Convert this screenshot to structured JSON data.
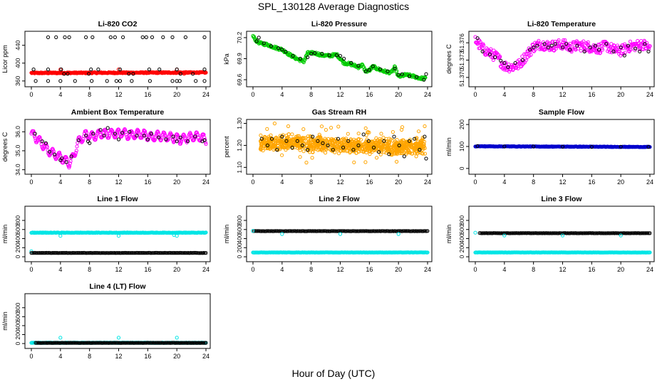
{
  "page": {
    "title": "SPL_130128  Average Diagnostics",
    "xlabel": "Hour of Day (UTC)"
  },
  "colors": {
    "black": "#000000",
    "red": "#ff0000",
    "green": "#00cc00",
    "magenta": "#ff00ff",
    "orange": "#ffa500",
    "blue": "#0000cc",
    "cyan": "#00e5e5"
  },
  "chart_data": [
    {
      "type": "scatter",
      "title": "Li-820 CO2",
      "ylabel": "Licor ppm",
      "xlim": [
        0,
        24
      ],
      "ylim": [
        355,
        465
      ],
      "xticks": [
        "0",
        "4",
        "8",
        "12",
        "16",
        "20",
        "24"
      ],
      "yticks": [
        "360",
        "400",
        "440"
      ],
      "series": [
        {
          "color": "red",
          "shape": "dense",
          "x": [
            0,
            24
          ],
          "y": [
            378,
            379
          ],
          "yjit": 1.3,
          "n": 330
        },
        {
          "color": "red",
          "shape": "points",
          "x": [
            4,
            12,
            20,
            13,
            21
          ],
          "y": [
            386,
            386,
            386,
            378,
            376
          ]
        },
        {
          "color": "black",
          "shape": "points",
          "x": [
            0.3,
            2.3,
            2.3,
            3.4,
            4.1,
            4.6,
            5,
            5.2,
            7.5,
            7.9,
            8.4,
            8.2,
            9.2,
            10.9,
            11.5,
            12.2,
            12.6,
            13.4,
            14,
            15.3,
            15.8,
            16.2,
            16.6,
            17.6,
            18.1,
            19.4,
            20,
            20.5,
            21.2,
            22.2,
            23.8,
            23.8,
            0.6,
            2.3,
            4,
            4.5,
            6,
            8.3,
            10.4,
            11.7,
            12.2,
            13.8,
            16.3,
            19.4,
            20,
            20.4,
            22.6,
            23.8
          ],
          "y": [
            386,
            386,
            458,
            458,
            386,
            458,
            376,
            458,
            458,
            376,
            458,
            386,
            386,
            458,
            458,
            386,
            458,
            376,
            376,
            458,
            458,
            386,
            458,
            386,
            458,
            458,
            386,
            376,
            458,
            376,
            386,
            458,
            360,
            360,
            360,
            376,
            360,
            360,
            360,
            360,
            360,
            360,
            360,
            360,
            360,
            360,
            360,
            360
          ]
        }
      ]
    },
    {
      "type": "scatter",
      "title": "Li-820 Pressure",
      "ylabel": "kPa",
      "xlim": [
        0,
        24
      ],
      "ylim": [
        69.55,
        70.25
      ],
      "xticks": [
        "0",
        "4",
        "8",
        "12",
        "16",
        "20",
        "24"
      ],
      "yticks": [
        "69.6",
        "69.9",
        "70.2"
      ],
      "series": [
        {
          "color": "green",
          "shape": "dense",
          "x": [
            0,
            0.5,
            1,
            2,
            3,
            4,
            5,
            6,
            7,
            7.5,
            8.5,
            9.5,
            10.5,
            11.5,
            12.5,
            13.5,
            14.5,
            15,
            15.5,
            16,
            16.5,
            17,
            18,
            19,
            19.5,
            20,
            21,
            22,
            23,
            23.7
          ],
          "y": [
            70.22,
            70.15,
            70.12,
            70.1,
            70.06,
            70.03,
            69.96,
            69.9,
            69.86,
            69.98,
            69.98,
            69.95,
            69.94,
            69.96,
            69.84,
            69.82,
            69.78,
            69.81,
            69.72,
            69.73,
            69.79,
            69.76,
            69.72,
            69.7,
            69.78,
            69.64,
            69.67,
            69.65,
            69.62,
            69.62
          ],
          "yjit": 0.018,
          "n": 320
        },
        {
          "color": "black",
          "shape": "points",
          "x": [
            0.5,
            1.5,
            2.5,
            3.5,
            4.5,
            5.5,
            6.5,
            7.5,
            8.5,
            9.5,
            10.5,
            11.5,
            12.5,
            13.5,
            14.5,
            15.5,
            16.5,
            17.5,
            18.5,
            19.5,
            20.5,
            21.5,
            22.5,
            23.5,
            0.8,
            4,
            8,
            12,
            16,
            20,
            23.8
          ],
          "y": [
            70.15,
            70.12,
            70.08,
            70.05,
            70.0,
            69.94,
            69.9,
            69.92,
            69.98,
            69.97,
            69.95,
            69.95,
            69.9,
            69.84,
            69.8,
            69.72,
            69.79,
            69.75,
            69.72,
            69.76,
            69.68,
            69.65,
            69.64,
            69.6,
            70.2,
            70.03,
            69.97,
            69.94,
            69.74,
            69.67,
            69.68
          ]
        }
      ]
    },
    {
      "type": "scatter",
      "title": "Li-820 Temperature",
      "ylabel": "degrees C",
      "xlim": [
        0,
        24
      ],
      "ylim": [
        51.369,
        51.3775
      ],
      "xticks": [
        "0",
        "4",
        "8",
        "12",
        "16",
        "20",
        "24"
      ],
      "yticks": [
        "51.370",
        "51.373",
        "51.376"
      ],
      "series": [
        {
          "color": "magenta",
          "shape": "dense",
          "x": [
            0,
            1,
            2,
            3,
            4,
            5,
            6,
            7,
            8,
            9,
            10,
            11,
            12,
            13,
            14,
            15,
            16,
            17,
            18,
            19,
            20,
            21,
            22,
            23,
            24
          ],
          "y": [
            51.3765,
            51.375,
            51.3742,
            51.3735,
            51.372,
            51.3718,
            51.3722,
            51.3738,
            51.3753,
            51.3758,
            51.3755,
            51.3755,
            51.3758,
            51.3752,
            51.3755,
            51.3755,
            51.3752,
            51.375,
            51.3755,
            51.3748,
            51.3746,
            51.3753,
            51.3755,
            51.3758,
            51.375
          ],
          "yjit": 0.0009,
          "n": 340
        },
        {
          "color": "black",
          "shape": "points",
          "x": [
            0.3,
            1,
            2,
            2.7,
            3.5,
            4,
            4.5,
            5.5,
            6.5,
            7.5,
            8,
            8.5,
            9.5,
            10,
            10.5,
            11,
            12,
            12.5,
            13,
            14,
            15,
            15.8,
            16.5,
            17,
            18,
            19,
            20,
            20.5,
            21,
            22,
            22.6,
            23.3,
            23.8
          ],
          "y": [
            51.3768,
            51.3745,
            51.374,
            51.3735,
            51.3729,
            51.3725,
            51.3718,
            51.3725,
            51.373,
            51.3748,
            51.3752,
            51.3755,
            51.3758,
            51.3752,
            51.3755,
            51.3758,
            51.3752,
            51.3758,
            51.3748,
            51.3755,
            51.3745,
            51.3752,
            51.3755,
            51.3748,
            51.3758,
            51.3745,
            51.3752,
            51.3738,
            51.3755,
            51.375,
            51.3745,
            51.3758,
            51.3745
          ]
        }
      ]
    },
    {
      "type": "scatter",
      "title": "Ambient Box Temperature",
      "ylabel": "degrees C",
      "xlim": [
        0,
        24
      ],
      "ylim": [
        33.95,
        36.5
      ],
      "xticks": [
        "0",
        "4",
        "8",
        "12",
        "16",
        "20",
        "24"
      ],
      "yticks": [
        "34.0",
        "35.0",
        "36.0"
      ],
      "series": [
        {
          "color": "magenta",
          "shape": "wave",
          "x0": 0,
          "x1": 24,
          "n": 330,
          "trend_x": [
            0,
            0.5,
            1.5,
            2.5,
            3.5,
            4.5,
            5.2,
            5.8,
            6.5,
            7.5,
            8.5,
            9.5,
            10.5,
            11.5,
            12.5,
            13.5,
            14.5,
            15.5,
            16.5,
            17.5,
            18.5,
            19.5,
            20.5,
            21.5,
            22.5,
            23.5,
            24
          ],
          "trend_y": [
            35.9,
            35.75,
            35.35,
            34.95,
            34.75,
            34.55,
            34.35,
            34.7,
            35.5,
            35.85,
            35.75,
            35.9,
            35.9,
            35.9,
            35.95,
            35.8,
            35.9,
            35.85,
            35.7,
            35.8,
            35.75,
            35.7,
            35.6,
            35.7,
            35.75,
            35.7,
            35.55
          ],
          "amp": 0.22,
          "period": 0.9
        },
        {
          "color": "black",
          "shape": "points",
          "x": [
            0.5,
            1.5,
            2.5,
            3.2,
            4,
            4.8,
            5.5,
            6.5,
            7.5,
            8,
            8.5,
            9.5,
            10,
            10.5,
            11.5,
            12,
            12.5,
            13.5,
            14.5,
            15.5,
            16,
            16.5,
            17.5,
            18.5,
            19.5,
            20,
            20.5,
            21.5,
            22.5,
            23.5,
            23.8,
            2,
            4.2,
            7.8
          ],
          "y": [
            35.9,
            35.5,
            34.95,
            34.8,
            34.5,
            34.4,
            34.7,
            35.55,
            35.8,
            35.4,
            35.9,
            36.1,
            35.8,
            36.2,
            35.9,
            35.6,
            35.95,
            36.0,
            35.8,
            35.8,
            35.6,
            35.9,
            35.7,
            35.6,
            35.75,
            35.5,
            35.7,
            35.5,
            35.75,
            35.5,
            35.55,
            35.4,
            34.6,
            35.5
          ]
        }
      ]
    },
    {
      "type": "scatter",
      "title": "Gas Stream RH",
      "ylabel": "percent",
      "xlim": [
        0,
        24
      ],
      "ylim": [
        1.085,
        1.305
      ],
      "xticks": [
        "0",
        "4",
        "8",
        "12",
        "16",
        "20",
        "24"
      ],
      "yticks": [
        "1.10",
        "1.20",
        "1.30"
      ],
      "series": [
        {
          "color": "orange",
          "shape": "band",
          "x0": 1,
          "x1": 23.7,
          "n": 950,
          "center": [
            1.205,
            1.215,
            1.205,
            1.2,
            1.195,
            1.195,
            1.2
          ],
          "spread": 0.04,
          "outliers": 0.09
        },
        {
          "color": "black",
          "shape": "points",
          "x": [
            1.2,
            2,
            2.6,
            3.3,
            4,
            4.6,
            5.4,
            6.1,
            6.8,
            7.5,
            8.2,
            8.9,
            9.6,
            10.3,
            11,
            11.7,
            12.4,
            13.1,
            13.8,
            14.5,
            15.2,
            15.9,
            16.6,
            17.3,
            18,
            18.7,
            19.4,
            20.1,
            20.8,
            21.5,
            22.2,
            22.9,
            23.6,
            23.8
          ],
          "y": [
            1.23,
            1.2,
            1.23,
            1.18,
            1.24,
            1.22,
            1.19,
            1.22,
            1.2,
            1.18,
            1.24,
            1.22,
            1.21,
            1.2,
            1.18,
            1.23,
            1.19,
            1.22,
            1.18,
            1.2,
            1.25,
            1.22,
            1.19,
            1.17,
            1.22,
            1.16,
            1.24,
            1.2,
            1.15,
            1.22,
            1.23,
            1.18,
            1.24,
            1.14
          ]
        }
      ]
    },
    {
      "type": "scatter",
      "title": "Sample Flow",
      "ylabel": "ml/min",
      "xlim": [
        0,
        24
      ],
      "ylim": [
        -10,
        210
      ],
      "xticks": [
        "0",
        "4",
        "8",
        "12",
        "16",
        "20",
        "24"
      ],
      "yticks": [
        "0",
        "100",
        "200"
      ],
      "series": [
        {
          "color": "blue",
          "shape": "dense",
          "x": [
            0,
            24
          ],
          "y": [
            101,
            98
          ],
          "yjit": 1.2,
          "n": 300
        },
        {
          "color": "black",
          "shape": "points",
          "x": [
            0.3,
            4,
            8,
            12,
            16,
            20,
            23.8
          ],
          "y": [
            102,
            100,
            100,
            99,
            98,
            99,
            98
          ]
        }
      ]
    },
    {
      "type": "scatter",
      "title": "Line 1 Flow",
      "ylabel": "ml/min",
      "xlim": [
        0,
        24
      ],
      "ylim": [
        -30,
        1050
      ],
      "xticks": [
        "0",
        "4",
        "8",
        "12",
        "16",
        "20",
        "24"
      ],
      "yticks": [
        "0",
        "200",
        "400",
        "600",
        "800"
      ],
      "series": [
        {
          "color": "cyan",
          "shape": "dense",
          "x": [
            0,
            24
          ],
          "y": [
            530,
            530
          ],
          "yjit": 5,
          "n": 260
        },
        {
          "color": "cyan",
          "shape": "points",
          "x": [
            4,
            12,
            20,
            19.6,
            0
          ],
          "y": [
            460,
            460,
            460,
            480,
            120
          ]
        },
        {
          "color": "black",
          "shape": "dense",
          "x": [
            0,
            24
          ],
          "y": [
            85,
            85
          ],
          "yjit": 2,
          "n": 150
        }
      ]
    },
    {
      "type": "scatter",
      "title": "Line 2 Flow",
      "ylabel": "ml/min",
      "xlim": [
        0,
        24
      ],
      "ylim": [
        -30,
        1050
      ],
      "xticks": [
        "0",
        "4",
        "8",
        "12",
        "16",
        "20",
        "24"
      ],
      "yticks": [
        "0",
        "200",
        "400",
        "600",
        "800"
      ],
      "series": [
        {
          "color": "black",
          "shape": "dense",
          "x": [
            0,
            24
          ],
          "y": [
            565,
            565
          ],
          "yjit": 3,
          "n": 150
        },
        {
          "color": "cyan",
          "shape": "points",
          "x": [
            0,
            4,
            12,
            20
          ],
          "y": [
            570,
            500,
            500,
            500
          ]
        },
        {
          "color": "cyan",
          "shape": "dense",
          "x": [
            0,
            24
          ],
          "y": [
            95,
            95
          ],
          "yjit": 3,
          "n": 260
        }
      ]
    },
    {
      "type": "scatter",
      "title": "Line 3 Flow",
      "ylabel": "ml/min",
      "xlim": [
        0,
        24
      ],
      "ylim": [
        -30,
        1050
      ],
      "xticks": [
        "0",
        "4",
        "8",
        "12",
        "16",
        "20",
        "24"
      ],
      "yticks": [
        "0",
        "200",
        "400",
        "600",
        "800"
      ],
      "series": [
        {
          "color": "black",
          "shape": "dense",
          "x": [
            0.6,
            24
          ],
          "y": [
            520,
            520
          ],
          "yjit": 3,
          "n": 150
        },
        {
          "color": "cyan",
          "shape": "points",
          "x": [
            0,
            4,
            12,
            20
          ],
          "y": [
            530,
            470,
            470,
            470
          ]
        },
        {
          "color": "cyan",
          "shape": "dense",
          "x": [
            0,
            24
          ],
          "y": [
            95,
            95
          ],
          "yjit": 3,
          "n": 260
        }
      ]
    },
    {
      "type": "scatter",
      "title": "Line 4 (LT) Flow",
      "ylabel": "ml/min",
      "xlim": [
        0,
        24
      ],
      "ylim": [
        -30,
        1050
      ],
      "xticks": [
        "0",
        "4",
        "8",
        "12",
        "16",
        "20",
        "24"
      ],
      "yticks": [
        "0",
        "200",
        "400",
        "600",
        "800"
      ],
      "series": [
        {
          "color": "cyan",
          "shape": "dense",
          "x": [
            0,
            24
          ],
          "y": [
            18,
            18
          ],
          "yjit": 3,
          "n": 240
        },
        {
          "color": "cyan",
          "shape": "points",
          "x": [
            4,
            12,
            20
          ],
          "y": [
            130,
            130,
            130
          ]
        },
        {
          "color": "black",
          "shape": "dense",
          "x": [
            0.6,
            24
          ],
          "y": [
            15,
            15
          ],
          "yjit": 2,
          "n": 150
        }
      ]
    }
  ]
}
